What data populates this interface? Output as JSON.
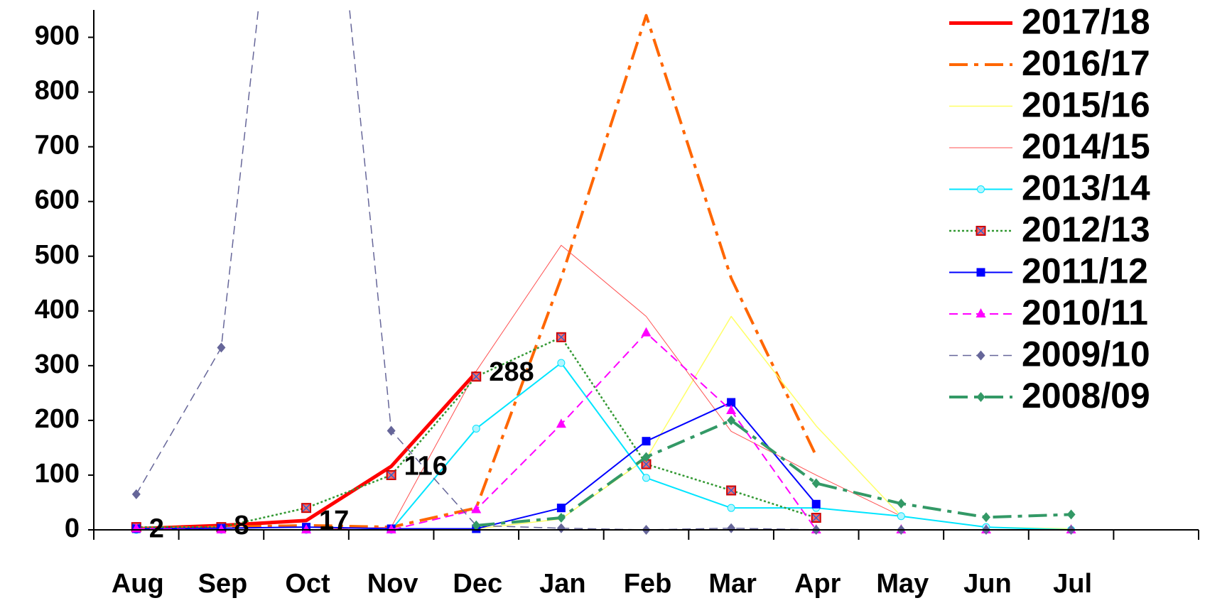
{
  "chart_data": {
    "type": "line",
    "categories": [
      "Aug",
      "Sep",
      "Oct",
      "Nov",
      "Dec",
      "Jan",
      "Feb",
      "Mar",
      "Apr",
      "May",
      "Jun",
      "Jul",
      null
    ],
    "ylim": [
      0,
      950
    ],
    "yticks": [
      0,
      100,
      200,
      300,
      400,
      500,
      600,
      700,
      800,
      900
    ],
    "legend": "top-right",
    "series": [
      {
        "name": "2017/18",
        "color": "#ff0000",
        "width": 5,
        "dash": "solid",
        "marker": "none",
        "data_labels": true,
        "values": [
          2,
          8,
          17,
          116,
          288,
          null,
          null,
          null,
          null,
          null,
          null,
          null,
          null
        ]
      },
      {
        "name": "2016/17",
        "color": "#ff6600",
        "width": 4,
        "dash": "dashdot",
        "marker": "none",
        "values": [
          2,
          5,
          8,
          5,
          40,
          460,
          940,
          460,
          135,
          null,
          null,
          null,
          null
        ]
      },
      {
        "name": "2015/16",
        "color": "#ffff66",
        "width": 1.5,
        "dash": "solid",
        "marker": "none",
        "values": [
          0,
          0,
          0,
          0,
          2,
          20,
          130,
          390,
          190,
          25,
          5,
          2,
          null
        ]
      },
      {
        "name": "2014/15",
        "color": "#ff5050",
        "width": 1,
        "dash": "solid",
        "marker": "none",
        "values": [
          0,
          0,
          0,
          5,
          290,
          520,
          390,
          180,
          100,
          25,
          5,
          0,
          null
        ]
      },
      {
        "name": "2013/14",
        "color": "#00e5ff",
        "width": 2,
        "dash": "solid",
        "marker": "circle",
        "values": [
          0,
          0,
          0,
          0,
          185,
          305,
          95,
          40,
          40,
          25,
          5,
          0,
          null
        ]
      },
      {
        "name": "2012/13",
        "color": "#339933",
        "width": 2.5,
        "dash": "dot",
        "marker": "xsquare",
        "values": [
          5,
          5,
          40,
          100,
          280,
          352,
          120,
          72,
          22,
          null,
          null,
          null,
          null
        ]
      },
      {
        "name": "2011/12",
        "color": "#0000ff",
        "width": 2,
        "dash": "solid",
        "marker": "square",
        "values": [
          2,
          3,
          5,
          2,
          2,
          40,
          162,
          233,
          47,
          null,
          null,
          null,
          null
        ]
      },
      {
        "name": "2010/11",
        "color": "#ff00ff",
        "width": 2,
        "dash": "dash",
        "marker": "triangle",
        "values": [
          2,
          0,
          0,
          0,
          37,
          193,
          360,
          218,
          0,
          0,
          0,
          0,
          null
        ]
      },
      {
        "name": "2009/10",
        "color": "#666699",
        "width": 1.5,
        "dash": "dash",
        "marker": "diamond",
        "values": [
          65,
          333,
          1750,
          181,
          8,
          3,
          0,
          3,
          0,
          0,
          0,
          0,
          null
        ]
      },
      {
        "name": "2008/09",
        "color": "#339966",
        "width": 4,
        "dash": "dashdot",
        "marker": "diamond",
        "values": [
          null,
          null,
          null,
          null,
          8,
          22,
          133,
          200,
          85,
          48,
          23,
          28,
          null
        ]
      }
    ]
  }
}
